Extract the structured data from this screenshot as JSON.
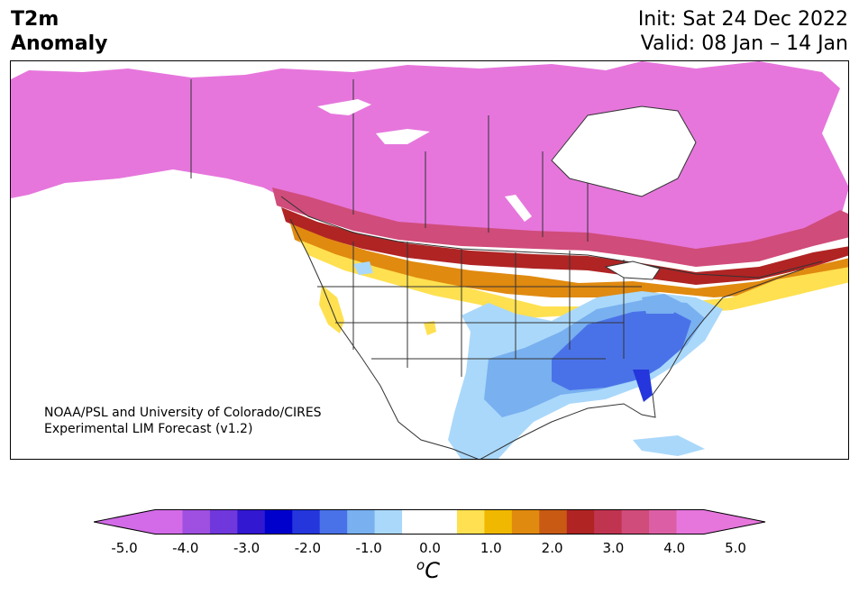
{
  "header": {
    "title_line1": "T2m",
    "title_line2": "Anomaly",
    "init": "Init: Sat 24 Dec 2022",
    "valid": "Valid: 08 Jan – 14 Jan"
  },
  "credit": {
    "line1": "NOAA/PSL and University of Colorado/CIRES",
    "line2": "Experimental LIM Forecast (v1.2)"
  },
  "colorbar": {
    "unit_sup": "o",
    "unit": "C",
    "ticks": [
      "-5.0",
      "-4.0",
      "-3.0",
      "-2.0",
      "-1.0",
      "0.0",
      "1.0",
      "2.0",
      "3.0",
      "4.0",
      "5.0"
    ],
    "colors": [
      "#d36be8",
      "#a050e0",
      "#7038dc",
      "#3218d0",
      "#0000cc",
      "#2436dc",
      "#4a72e8",
      "#78b0f0",
      "#aad8fa",
      "#ffffff",
      "#ffffff",
      "#ffe050",
      "#f0b800",
      "#e08a10",
      "#c85a14",
      "#b02424",
      "#c03450",
      "#d04c7a",
      "#dc5fa6",
      "#e676dc"
    ],
    "under_color": "#d36be8",
    "over_color": "#e676dc"
  },
  "colors": {
    "deep_warm": "#e676dc",
    "warm_pink": "#d04c7a",
    "warm_red": "#b02424",
    "warm_orange": "#e08a10",
    "warm_yellow": "#ffe050",
    "cool_light": "#aad8fa",
    "cool_mid": "#78b0f0",
    "cool_blue": "#4a72e8",
    "cool_deep": "#2436dc"
  }
}
